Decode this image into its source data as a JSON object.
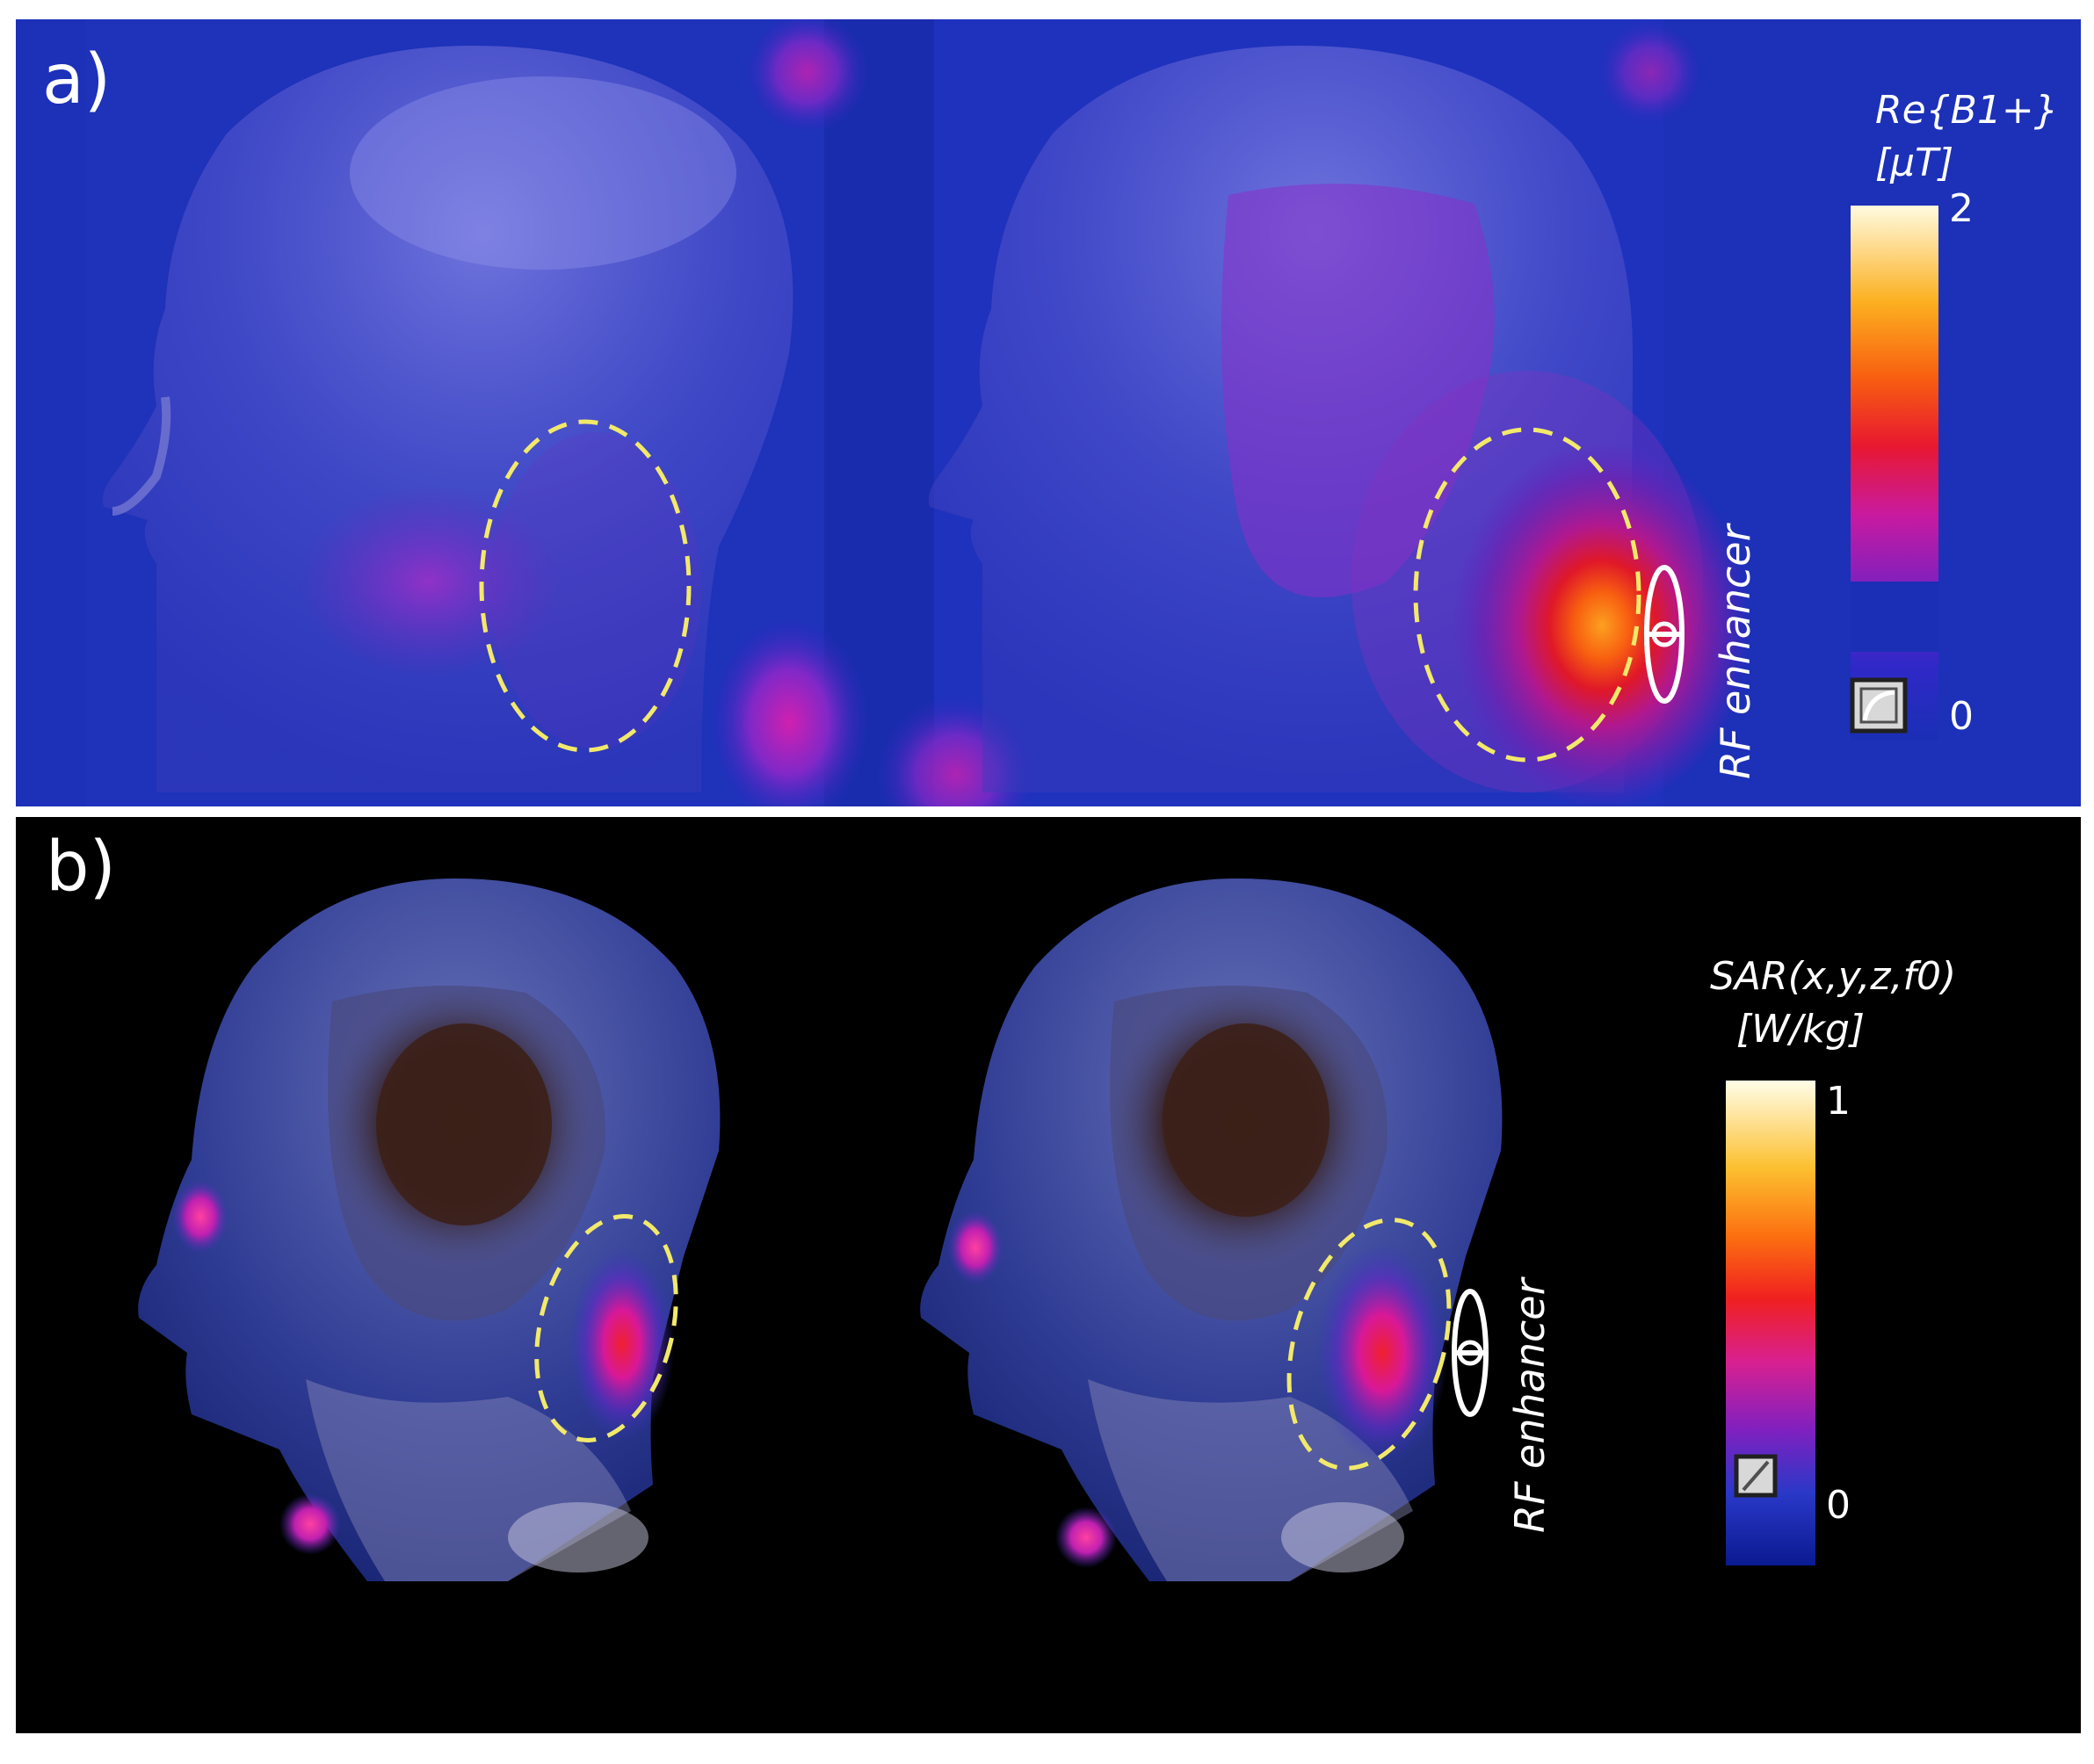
{
  "panel_a": {
    "label": "a)",
    "colorbar": {
      "title_line1": "Re{B1+}",
      "title_line2": "[µT]",
      "max_label": "2",
      "min_label": "0",
      "range": [
        0,
        2
      ],
      "colors": [
        "#1a2fb5",
        "#5a20c8",
        "#c020a0",
        "#e01830",
        "#f85010",
        "#fca020",
        "#fff8d0"
      ]
    },
    "enhancer_label": "RF enhancer",
    "roi_color": "#f2e96a"
  },
  "panel_b": {
    "label": "b)",
    "colorbar": {
      "title_line1": "SAR(x,y,z,f0)",
      "title_line2": "[W/kg]",
      "max_label": "1",
      "min_label": "0",
      "range": [
        0,
        1
      ],
      "colors": [
        "#0a1a90",
        "#3040d0",
        "#8020c0",
        "#d02080",
        "#f02020",
        "#fc8010",
        "#fffde8"
      ]
    },
    "enhancer_label": "RF enhancer",
    "roi_color": "#f2e96a"
  }
}
